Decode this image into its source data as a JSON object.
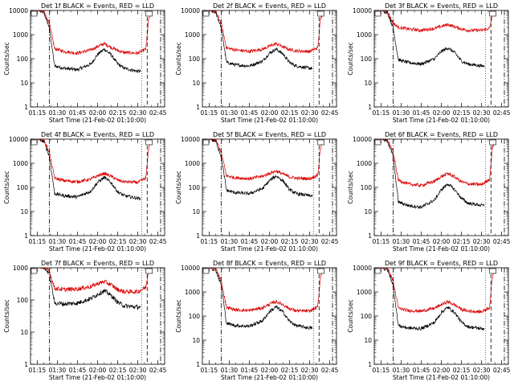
{
  "figure": {
    "y_axis_label": "Counts/sec",
    "x_axis_label": "Start Time (21-Feb-02 01:10:00)"
  },
  "chart_data": [
    {
      "type": "line",
      "title": "Det 1f BLACK = Events, RED = LLD",
      "xlabel": "Start Time (21-Feb-02 01:10:00)",
      "ylabel": "Counts/sec",
      "y_scale": "log",
      "ylim": [
        1,
        10000
      ],
      "xlim": [
        "01:10",
        "02:50"
      ],
      "x_ticks": [
        "01:15",
        "01:30",
        "01:45",
        "02:00",
        "02:15",
        "02:30",
        "02:45"
      ],
      "y_ticks": [
        "1",
        "10",
        "100",
        "1000",
        "10000"
      ],
      "series": [
        {
          "name": "Events",
          "color": "#000000",
          "x": [
            "01:15",
            "01:20",
            "01:24",
            "01:28",
            "01:35",
            "01:45",
            "01:55",
            "02:00",
            "02:05",
            "02:10",
            "02:15",
            "02:20",
            "02:30",
            "02:32"
          ],
          "y": [
            10000,
            8000,
            2000,
            50,
            40,
            35,
            60,
            150,
            250,
            150,
            60,
            40,
            30,
            30
          ]
        },
        {
          "name": "LLD",
          "color": "#dd0000",
          "x": [
            "01:15",
            "01:20",
            "01:24",
            "01:28",
            "01:35",
            "01:45",
            "01:55",
            "02:00",
            "02:05",
            "02:10",
            "02:15",
            "02:20",
            "02:30",
            "02:36",
            "02:38",
            "02:40"
          ],
          "y": [
            10000,
            9000,
            3000,
            260,
            200,
            170,
            230,
            320,
            420,
            300,
            220,
            180,
            170,
            250,
            4000,
            10000
          ]
        }
      ]
    },
    {
      "type": "line",
      "title": "Det 2f BLACK = Events, RED = LLD",
      "xlabel": "Start Time (21-Feb-02 01:10:00)",
      "ylabel": "Counts/sec",
      "y_scale": "log",
      "ylim": [
        1,
        10000
      ],
      "xlim": [
        "01:10",
        "02:50"
      ],
      "x_ticks": [
        "01:15",
        "01:30",
        "01:45",
        "02:00",
        "02:15",
        "02:30",
        "02:45"
      ],
      "y_ticks": [
        "1",
        "10",
        "100",
        "1000",
        "10000"
      ],
      "series": [
        {
          "name": "Events",
          "color": "#000000",
          "x": [
            "01:15",
            "01:20",
            "01:24",
            "01:28",
            "01:35",
            "01:45",
            "01:55",
            "02:00",
            "02:05",
            "02:10",
            "02:15",
            "02:20",
            "02:30",
            "02:32"
          ],
          "y": [
            10000,
            8000,
            2000,
            70,
            55,
            50,
            80,
            170,
            250,
            160,
            70,
            50,
            40,
            40
          ]
        },
        {
          "name": "LLD",
          "color": "#dd0000",
          "x": [
            "01:15",
            "01:20",
            "01:24",
            "01:28",
            "01:35",
            "01:45",
            "01:55",
            "02:00",
            "02:05",
            "02:10",
            "02:15",
            "02:20",
            "02:30",
            "02:36",
            "02:38",
            "02:40"
          ],
          "y": [
            10000,
            9000,
            3000,
            280,
            230,
            200,
            250,
            330,
            420,
            310,
            240,
            210,
            200,
            280,
            4000,
            10000
          ]
        }
      ]
    },
    {
      "type": "line",
      "title": "Det 3f BLACK = Events, RED = LLD",
      "xlabel": "Start Time (21-Feb-02 01:10:00)",
      "ylabel": "Counts/sec",
      "y_scale": "log",
      "ylim": [
        1,
        10000
      ],
      "xlim": [
        "01:10",
        "02:50"
      ],
      "x_ticks": [
        "01:15",
        "01:30",
        "01:45",
        "02:00",
        "02:15",
        "02:30",
        "02:45"
      ],
      "y_ticks": [
        "1",
        "10",
        "100",
        "1000",
        "10000"
      ],
      "series": [
        {
          "name": "Events",
          "color": "#000000",
          "x": [
            "01:15",
            "01:20",
            "01:24",
            "01:28",
            "01:35",
            "01:45",
            "01:55",
            "02:00",
            "02:05",
            "02:10",
            "02:15",
            "02:20",
            "02:30",
            "02:32"
          ],
          "y": [
            10000,
            8000,
            2000,
            90,
            70,
            60,
            100,
            200,
            280,
            180,
            80,
            60,
            50,
            50
          ]
        },
        {
          "name": "LLD",
          "color": "#dd0000",
          "x": [
            "01:15",
            "01:20",
            "01:24",
            "01:28",
            "01:35",
            "01:45",
            "01:55",
            "02:00",
            "02:05",
            "02:10",
            "02:15",
            "02:20",
            "02:30",
            "02:36",
            "02:38",
            "02:40"
          ],
          "y": [
            10000,
            9000,
            3000,
            2000,
            1700,
            1500,
            1800,
            2200,
            2600,
            2100,
            1700,
            1500,
            1500,
            1800,
            6000,
            10000
          ]
        }
      ]
    },
    {
      "type": "line",
      "title": "Det 4f BLACK = Events, RED = LLD",
      "xlabel": "Start Time (21-Feb-02 01:10:00)",
      "ylabel": "Counts/sec",
      "y_scale": "log",
      "ylim": [
        1,
        10000
      ],
      "xlim": [
        "01:10",
        "02:50"
      ],
      "x_ticks": [
        "01:15",
        "01:30",
        "01:45",
        "02:00",
        "02:15",
        "02:30",
        "02:45"
      ],
      "y_ticks": [
        "1",
        "10",
        "100",
        "1000",
        "10000"
      ],
      "series": [
        {
          "name": "Events",
          "color": "#000000",
          "x": [
            "01:15",
            "01:20",
            "01:24",
            "01:28",
            "01:35",
            "01:45",
            "01:55",
            "02:00",
            "02:05",
            "02:10",
            "02:15",
            "02:20",
            "02:30",
            "02:32"
          ],
          "y": [
            10000,
            8000,
            2000,
            55,
            45,
            40,
            70,
            160,
            260,
            160,
            65,
            45,
            35,
            35
          ]
        },
        {
          "name": "LLD",
          "color": "#dd0000",
          "x": [
            "01:15",
            "01:20",
            "01:24",
            "01:28",
            "01:35",
            "01:45",
            "01:55",
            "02:00",
            "02:05",
            "02:10",
            "02:15",
            "02:20",
            "02:30",
            "02:36",
            "02:38",
            "02:40"
          ],
          "y": [
            10000,
            9000,
            3000,
            240,
            190,
            170,
            220,
            300,
            380,
            290,
            200,
            170,
            160,
            240,
            4000,
            10000
          ]
        }
      ]
    },
    {
      "type": "line",
      "title": "Det 5f BLACK = Events, RED = LLD",
      "xlabel": "Start Time (21-Feb-02 01:10:00)",
      "ylabel": "Counts/sec",
      "y_scale": "log",
      "ylim": [
        1,
        10000
      ],
      "xlim": [
        "01:10",
        "02:50"
      ],
      "x_ticks": [
        "01:15",
        "01:30",
        "01:45",
        "02:00",
        "02:15",
        "02:30",
        "02:45"
      ],
      "y_ticks": [
        "1",
        "10",
        "100",
        "1000",
        "10000"
      ],
      "series": [
        {
          "name": "Events",
          "color": "#000000",
          "x": [
            "01:15",
            "01:20",
            "01:24",
            "01:28",
            "01:35",
            "01:45",
            "01:55",
            "02:00",
            "02:05",
            "02:10",
            "02:15",
            "02:20",
            "02:30",
            "02:32"
          ],
          "y": [
            10000,
            8000,
            2000,
            75,
            60,
            55,
            90,
            190,
            300,
            190,
            80,
            55,
            45,
            45
          ]
        },
        {
          "name": "LLD",
          "color": "#dd0000",
          "x": [
            "01:15",
            "01:20",
            "01:24",
            "01:28",
            "01:35",
            "01:45",
            "01:55",
            "02:00",
            "02:05",
            "02:10",
            "02:15",
            "02:20",
            "02:30",
            "02:36",
            "02:38",
            "02:40"
          ],
          "y": [
            10000,
            9000,
            3000,
            300,
            250,
            230,
            290,
            380,
            480,
            360,
            270,
            240,
            230,
            320,
            4000,
            10000
          ]
        }
      ]
    },
    {
      "type": "line",
      "title": "Det 6f BLACK = Events, RED = LLD",
      "xlabel": "Start Time (21-Feb-02 01:10:00)",
      "ylabel": "Counts/sec",
      "y_scale": "log",
      "ylim": [
        1,
        10000
      ],
      "xlim": [
        "01:10",
        "02:50"
      ],
      "x_ticks": [
        "01:15",
        "01:30",
        "01:45",
        "02:00",
        "02:15",
        "02:30",
        "02:45"
      ],
      "y_ticks": [
        "1",
        "10",
        "100",
        "1000",
        "10000"
      ],
      "series": [
        {
          "name": "Events",
          "color": "#000000",
          "x": [
            "01:15",
            "01:20",
            "01:24",
            "01:28",
            "01:35",
            "01:45",
            "01:55",
            "02:00",
            "02:05",
            "02:10",
            "02:15",
            "02:20",
            "02:30",
            "02:32"
          ],
          "y": [
            10000,
            8000,
            2000,
            25,
            18,
            15,
            30,
            80,
            140,
            80,
            35,
            22,
            18,
            18
          ]
        },
        {
          "name": "LLD",
          "color": "#dd0000",
          "x": [
            "01:15",
            "01:20",
            "01:24",
            "01:28",
            "01:35",
            "01:45",
            "01:55",
            "02:00",
            "02:05",
            "02:10",
            "02:15",
            "02:20",
            "02:30",
            "02:36",
            "02:38",
            "02:40"
          ],
          "y": [
            10000,
            9000,
            3000,
            200,
            140,
            120,
            180,
            280,
            380,
            270,
            170,
            140,
            130,
            220,
            4000,
            10000
          ]
        }
      ]
    },
    {
      "type": "line",
      "title": "Det 7f BLACK = Events, RED = LLD",
      "xlabel": "Start Time (21-Feb-02 01:10:00)",
      "ylabel": "Counts/sec",
      "y_scale": "log",
      "ylim": [
        1,
        1000
      ],
      "xlim": [
        "01:10",
        "02:50"
      ],
      "x_ticks": [
        "01:15",
        "01:30",
        "01:45",
        "02:00",
        "02:15",
        "02:30",
        "02:45"
      ],
      "y_ticks": [
        "1",
        "10",
        "100",
        "1000"
      ],
      "series": [
        {
          "name": "Events",
          "color": "#000000",
          "x": [
            "01:15",
            "01:20",
            "01:24",
            "01:28",
            "01:35",
            "01:45",
            "01:55",
            "02:00",
            "02:05",
            "02:10",
            "02:15",
            "02:20",
            "02:30",
            "02:32"
          ],
          "y": [
            1000,
            950,
            700,
            80,
            75,
            80,
            110,
            150,
            190,
            140,
            85,
            65,
            60,
            60
          ]
        },
        {
          "name": "LLD",
          "color": "#dd0000",
          "x": [
            "01:15",
            "01:20",
            "01:24",
            "01:28",
            "01:35",
            "01:45",
            "01:55",
            "02:00",
            "02:05",
            "02:10",
            "02:15",
            "02:20",
            "02:30",
            "02:36",
            "02:38",
            "02:40"
          ],
          "y": [
            1000,
            1000,
            800,
            230,
            210,
            220,
            260,
            320,
            370,
            300,
            210,
            180,
            180,
            250,
            900,
            1000
          ]
        }
      ]
    },
    {
      "type": "line",
      "title": "Det 8f BLACK = Events, RED = LLD",
      "xlabel": "Start Time (21-Feb-02 01:10:00)",
      "ylabel": "Counts/sec",
      "y_scale": "log",
      "ylim": [
        1,
        10000
      ],
      "xlim": [
        "01:10",
        "02:50"
      ],
      "x_ticks": [
        "01:15",
        "01:30",
        "01:45",
        "02:00",
        "02:15",
        "02:30",
        "02:45"
      ],
      "y_ticks": [
        "1",
        "10",
        "100",
        "1000",
        "10000"
      ],
      "series": [
        {
          "name": "Events",
          "color": "#000000",
          "x": [
            "01:15",
            "01:20",
            "01:24",
            "01:28",
            "01:35",
            "01:45",
            "01:55",
            "02:00",
            "02:05",
            "02:10",
            "02:15",
            "02:20",
            "02:30",
            "02:32"
          ],
          "y": [
            10000,
            8000,
            2000,
            50,
            40,
            38,
            65,
            150,
            240,
            150,
            60,
            40,
            32,
            32
          ]
        },
        {
          "name": "LLD",
          "color": "#dd0000",
          "x": [
            "01:15",
            "01:20",
            "01:24",
            "01:28",
            "01:35",
            "01:45",
            "01:55",
            "02:00",
            "02:05",
            "02:10",
            "02:15",
            "02:20",
            "02:30",
            "02:36",
            "02:38",
            "02:40"
          ],
          "y": [
            10000,
            9000,
            3000,
            230,
            180,
            170,
            220,
            310,
            400,
            300,
            200,
            165,
            160,
            240,
            4000,
            10000
          ]
        }
      ]
    },
    {
      "type": "line",
      "title": "Det 9f BLACK = Events, RED = LLD",
      "xlabel": "Start Time (21-Feb-02 01:10:00)",
      "ylabel": "Counts/sec",
      "y_scale": "log",
      "ylim": [
        1,
        10000
      ],
      "xlim": [
        "01:10",
        "02:50"
      ],
      "x_ticks": [
        "01:15",
        "01:30",
        "01:45",
        "02:00",
        "02:15",
        "02:30",
        "02:45"
      ],
      "y_ticks": [
        "1",
        "10",
        "100",
        "1000",
        "10000"
      ],
      "series": [
        {
          "name": "Events",
          "color": "#000000",
          "x": [
            "01:15",
            "01:20",
            "01:24",
            "01:28",
            "01:35",
            "01:45",
            "01:55",
            "02:00",
            "02:05",
            "02:10",
            "02:15",
            "02:20",
            "02:30",
            "02:32"
          ],
          "y": [
            10000,
            8000,
            2000,
            40,
            32,
            30,
            55,
            140,
            230,
            140,
            55,
            36,
            30,
            30
          ]
        },
        {
          "name": "LLD",
          "color": "#dd0000",
          "x": [
            "01:15",
            "01:20",
            "01:24",
            "01:28",
            "01:35",
            "01:45",
            "01:55",
            "02:00",
            "02:05",
            "02:10",
            "02:15",
            "02:20",
            "02:30",
            "02:36",
            "02:38",
            "02:40"
          ],
          "y": [
            10000,
            9000,
            3000,
            210,
            170,
            160,
            210,
            300,
            390,
            290,
            190,
            160,
            150,
            230,
            4000,
            10000
          ]
        }
      ]
    }
  ]
}
